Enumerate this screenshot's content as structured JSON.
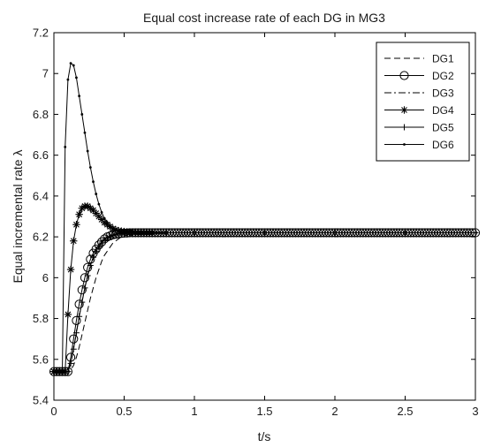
{
  "chart_data": {
    "type": "line",
    "title": "Equal cost increase rate of  each DG in MG3",
    "xlabel": "t/s",
    "ylabel": "Equal incremental rate λ",
    "xlim": [
      0,
      3
    ],
    "ylim": [
      5.4,
      7.2
    ],
    "xticks": [
      0,
      0.5,
      1,
      1.5,
      2,
      2.5,
      3
    ],
    "xtick_labels": [
      "0",
      "0.5",
      "1",
      "1.5",
      "2",
      "2.5",
      "3"
    ],
    "yticks": [
      5.4,
      5.6,
      5.8,
      6,
      6.2,
      6.4,
      6.6,
      6.8,
      7,
      7.2
    ],
    "ytick_labels": [
      "5.4",
      "5.6",
      "5.8",
      "6",
      "6.2",
      "6.4",
      "6.6",
      "6.8",
      "7",
      "7.2"
    ],
    "grid": false,
    "legend_position": "top-right",
    "series": [
      {
        "name": "DG1",
        "style": "dashed",
        "color": "#000000",
        "x": [
          0,
          0.02,
          0.04,
          0.06,
          0.08,
          0.1,
          0.12,
          0.14,
          0.16,
          0.18,
          0.2,
          0.22,
          0.24,
          0.26,
          0.28,
          0.3,
          0.32,
          0.34,
          0.36,
          0.38,
          0.4,
          0.42,
          0.44,
          0.46,
          0.48,
          0.5,
          0.55,
          0.6,
          0.7,
          0.8,
          1,
          1.5,
          2,
          2.5,
          3
        ],
        "values": [
          5.54,
          5.54,
          5.54,
          5.54,
          5.54,
          5.54,
          5.55,
          5.57,
          5.61,
          5.66,
          5.72,
          5.78,
          5.84,
          5.9,
          5.95,
          6.0,
          6.04,
          6.08,
          6.11,
          6.13,
          6.15,
          6.17,
          6.18,
          6.19,
          6.2,
          6.205,
          6.213,
          6.217,
          6.22,
          6.22,
          6.22,
          6.22,
          6.22,
          6.22,
          6.22
        ]
      },
      {
        "name": "DG2",
        "style": "circle",
        "color": "#000000",
        "x": [
          0,
          0.02,
          0.04,
          0.06,
          0.08,
          0.1,
          0.12,
          0.14,
          0.16,
          0.18,
          0.2,
          0.22,
          0.24,
          0.26,
          0.28,
          0.3,
          0.32,
          0.34,
          0.36,
          0.38,
          0.4,
          0.42,
          0.44,
          0.46,
          0.48,
          0.5,
          0.52,
          0.54,
          0.56,
          0.58,
          0.6,
          0.62,
          0.64,
          0.66,
          0.68,
          0.7,
          0.72,
          0.74,
          0.76,
          0.78,
          0.8,
          0.82,
          0.84,
          0.86,
          0.88,
          0.9,
          0.92,
          0.94,
          0.96,
          0.98,
          1,
          1.02,
          1.04,
          1.06,
          1.08,
          1.1,
          1.12,
          1.14,
          1.16,
          1.18,
          1.2,
          1.22,
          1.24,
          1.26,
          1.28,
          1.3,
          1.32,
          1.34,
          1.36,
          1.38,
          1.4,
          1.42,
          1.44,
          1.46,
          1.48,
          1.5,
          1.52,
          1.54,
          1.56,
          1.58,
          1.6,
          1.62,
          1.64,
          1.66,
          1.68,
          1.7,
          1.72,
          1.74,
          1.76,
          1.78,
          1.8,
          1.82,
          1.84,
          1.86,
          1.88,
          1.9,
          1.92,
          1.94,
          1.96,
          1.98,
          2,
          2.02,
          2.04,
          2.06,
          2.08,
          2.1,
          2.12,
          2.14,
          2.16,
          2.18,
          2.2,
          2.22,
          2.24,
          2.26,
          2.28,
          2.3,
          2.32,
          2.34,
          2.36,
          2.38,
          2.4,
          2.42,
          2.44,
          2.46,
          2.48,
          2.5,
          2.52,
          2.54,
          2.56,
          2.58,
          2.6,
          2.62,
          2.64,
          2.66,
          2.68,
          2.7,
          2.72,
          2.74,
          2.76,
          2.78,
          2.8,
          2.82,
          2.84,
          2.86,
          2.88,
          2.9,
          2.92,
          2.94,
          2.96,
          2.98,
          3
        ],
        "values": [
          5.54,
          5.54,
          5.54,
          5.54,
          5.54,
          5.54,
          5.61,
          5.7,
          5.79,
          5.87,
          5.94,
          6.0,
          6.05,
          6.09,
          6.12,
          6.14,
          6.16,
          6.175,
          6.19,
          6.2,
          6.205,
          6.21,
          6.213,
          6.215,
          6.217,
          6.218,
          6.219,
          6.22,
          6.22,
          6.22,
          6.22,
          6.22,
          6.22,
          6.22,
          6.22,
          6.22,
          6.22,
          6.22,
          6.22,
          6.22,
          6.22,
          6.22,
          6.22,
          6.22,
          6.22,
          6.22,
          6.22,
          6.22,
          6.22,
          6.22,
          6.22,
          6.22,
          6.22,
          6.22,
          6.22,
          6.22,
          6.22,
          6.22,
          6.22,
          6.22,
          6.22,
          6.22,
          6.22,
          6.22,
          6.22,
          6.22,
          6.22,
          6.22,
          6.22,
          6.22,
          6.22,
          6.22,
          6.22,
          6.22,
          6.22,
          6.22,
          6.22,
          6.22,
          6.22,
          6.22,
          6.22,
          6.22,
          6.22,
          6.22,
          6.22,
          6.22,
          6.22,
          6.22,
          6.22,
          6.22,
          6.22,
          6.22,
          6.22,
          6.22,
          6.22,
          6.22,
          6.22,
          6.22,
          6.22,
          6.22,
          6.22,
          6.22,
          6.22,
          6.22,
          6.22,
          6.22,
          6.22,
          6.22,
          6.22,
          6.22,
          6.22,
          6.22,
          6.22,
          6.22,
          6.22,
          6.22,
          6.22,
          6.22,
          6.22,
          6.22,
          6.22,
          6.22,
          6.22,
          6.22,
          6.22,
          6.22,
          6.22,
          6.22,
          6.22,
          6.22,
          6.22,
          6.22,
          6.22,
          6.22,
          6.22,
          6.22,
          6.22,
          6.22,
          6.22,
          6.22,
          6.22,
          6.22,
          6.22,
          6.22,
          6.22,
          6.22,
          6.22,
          6.22,
          6.22,
          6.22,
          6.22
        ]
      },
      {
        "name": "DG3",
        "style": "dashdot",
        "color": "#000000",
        "x": [
          0,
          0.02,
          0.04,
          0.06,
          0.08,
          0.1,
          0.12,
          0.14,
          0.16,
          0.18,
          0.2,
          0.22,
          0.24,
          0.26,
          0.28,
          0.3,
          0.32,
          0.34,
          0.36,
          0.38,
          0.4,
          0.42,
          0.44,
          0.46,
          0.48,
          0.5,
          0.55,
          0.6,
          0.7,
          0.8,
          1,
          1.5,
          2,
          2.5,
          3
        ],
        "values": [
          5.54,
          5.54,
          5.54,
          5.54,
          5.54,
          5.54,
          5.58,
          5.65,
          5.73,
          5.81,
          5.88,
          5.95,
          6.01,
          6.06,
          6.1,
          6.13,
          6.15,
          6.17,
          6.185,
          6.195,
          6.2,
          6.207,
          6.212,
          6.215,
          6.217,
          6.218,
          6.22,
          6.22,
          6.22,
          6.22,
          6.22,
          6.22,
          6.22,
          6.22,
          6.22
        ]
      },
      {
        "name": "DG4",
        "style": "asterisk",
        "color": "#000000",
        "x": [
          0,
          0.02,
          0.04,
          0.06,
          0.08,
          0.1,
          0.12,
          0.14,
          0.16,
          0.18,
          0.2,
          0.22,
          0.24,
          0.26,
          0.28,
          0.3,
          0.32,
          0.34,
          0.36,
          0.38,
          0.4,
          0.42,
          0.44,
          0.46,
          0.48,
          0.5,
          0.52,
          0.54,
          0.56,
          0.58,
          0.6,
          0.62,
          0.64,
          0.66,
          0.68,
          0.7
        ],
        "values": [
          5.54,
          5.54,
          5.54,
          5.54,
          5.54,
          5.82,
          6.04,
          6.18,
          6.26,
          6.31,
          6.34,
          6.35,
          6.35,
          6.34,
          6.33,
          6.315,
          6.3,
          6.285,
          6.27,
          6.26,
          6.25,
          6.24,
          6.235,
          6.23,
          6.228,
          6.226,
          6.224,
          6.223,
          6.222,
          6.221,
          6.22,
          6.22,
          6.22,
          6.22,
          6.22,
          6.22
        ]
      },
      {
        "name": "DG5",
        "style": "plus",
        "color": "#000000",
        "x": [
          0,
          0.02,
          0.04,
          0.06,
          0.08,
          0.1,
          0.12,
          0.14,
          0.16,
          0.18,
          0.2,
          0.22,
          0.24,
          0.26,
          0.28,
          0.3,
          0.32,
          0.34,
          0.36,
          0.38,
          0.4,
          0.42,
          0.44,
          0.46,
          0.48,
          0.5,
          0.55,
          0.6,
          0.7,
          0.8,
          1,
          1.5,
          2,
          2.5,
          3
        ],
        "values": [
          5.54,
          5.54,
          5.54,
          5.54,
          5.54,
          5.54,
          5.58,
          5.65,
          5.73,
          5.81,
          5.88,
          5.95,
          6.01,
          6.06,
          6.1,
          6.13,
          6.15,
          6.17,
          6.185,
          6.195,
          6.2,
          6.207,
          6.212,
          6.215,
          6.217,
          6.218,
          6.22,
          6.22,
          6.22,
          6.22,
          6.22,
          6.22,
          6.22,
          6.22,
          6.22
        ]
      },
      {
        "name": "DG6",
        "style": "dot",
        "color": "#000000",
        "x": [
          0,
          0.02,
          0.04,
          0.06,
          0.08,
          0.1,
          0.12,
          0.14,
          0.16,
          0.18,
          0.2,
          0.22,
          0.24,
          0.26,
          0.28,
          0.3,
          0.32,
          0.34,
          0.36,
          0.38,
          0.4,
          0.42,
          0.44,
          0.46,
          0.48,
          0.5,
          0.52,
          0.54,
          0.56,
          0.58,
          0.6,
          0.62,
          0.64,
          0.66,
          0.68,
          0.7,
          0.72,
          0.74,
          0.76,
          0.78,
          0.8
        ],
        "values": [
          5.54,
          5.54,
          5.54,
          5.54,
          6.64,
          6.97,
          7.05,
          7.04,
          6.98,
          6.89,
          6.8,
          6.71,
          6.62,
          6.54,
          6.47,
          6.41,
          6.36,
          6.32,
          6.29,
          6.27,
          6.25,
          6.24,
          6.233,
          6.228,
          6.225,
          6.223,
          6.222,
          6.221,
          6.22,
          6.22,
          6.22,
          6.22,
          6.22,
          6.22,
          6.22,
          6.22,
          6.22,
          6.22,
          6.22,
          6.22,
          6.22
        ]
      }
    ]
  }
}
